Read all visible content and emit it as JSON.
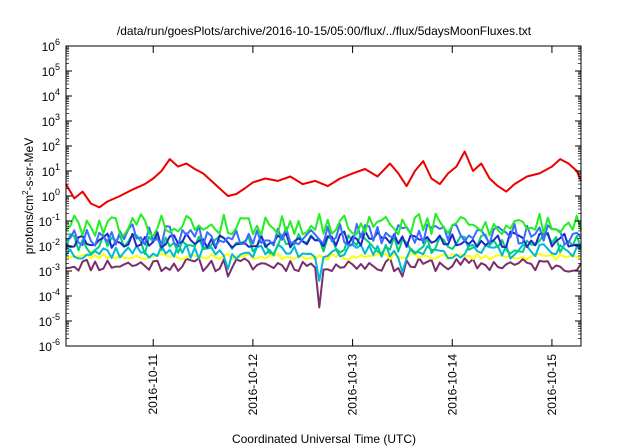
{
  "chart_data": {
    "type": "line",
    "title": "/data/run/goesPlots/archive/2016-10-15/05:00/flux/../flux/5daysMoonFluxes.txt",
    "xlabel": "Coordinated Universal Time (UTC)",
    "ylabel": {
      "pre": "protons/cm",
      "sup": "2",
      "post": "-s-sr-MeV"
    },
    "yscale": "log",
    "ylim_exp": [
      -6,
      6
    ],
    "y_ticks": [
      {
        "base": "10",
        "exp": "-6",
        "value": -6
      },
      {
        "base": "10",
        "exp": "-5",
        "value": -5
      },
      {
        "base": "10",
        "exp": "-4",
        "value": -4
      },
      {
        "base": "10",
        "exp": "-3",
        "value": -3
      },
      {
        "base": "10",
        "exp": "-2",
        "value": -2
      },
      {
        "base": "10",
        "exp": "-1",
        "value": -1
      },
      {
        "base": "10",
        "exp": "0",
        "value": 0
      },
      {
        "base": "10",
        "exp": "1",
        "value": 1
      },
      {
        "base": "10",
        "exp": "2",
        "value": 2
      },
      {
        "base": "10",
        "exp": "3",
        "value": 3
      },
      {
        "base": "10",
        "exp": "4",
        "value": 4
      },
      {
        "base": "10",
        "exp": "5",
        "value": 5
      },
      {
        "base": "10",
        "exp": "6",
        "value": 6
      }
    ],
    "xlim": [
      "2016-10-10T03:00",
      "2016-10-15T07:00"
    ],
    "x_ticks": [
      "2016-10-11",
      "2016-10-12",
      "2016-10-13",
      "2016-10-14",
      "2016-10-15"
    ],
    "grid": false,
    "legend": "none",
    "series": [
      {
        "color": "#7a2f6a",
        "base": 0.0018,
        "noise": 0.28,
        "seed": 11,
        "dips": [
          {
            "t": "2016-10-11T18:00",
            "v": 0.0006
          },
          {
            "t": "2016-10-12T16:00",
            "v": 3.5e-05
          },
          {
            "t": "2016-10-13T12:00",
            "v": 0.0006
          }
        ]
      },
      {
        "color": "#ffff00",
        "base": 0.0038,
        "noise": 0.12,
        "seed": 23,
        "dips": []
      },
      {
        "color": "#00b8d8",
        "base": 0.006,
        "noise": 0.3,
        "seed": 37,
        "dips": [
          {
            "t": "2016-10-11T18:00",
            "v": 0.0012
          },
          {
            "t": "2016-10-12T16:00",
            "v": 0.0004
          },
          {
            "t": "2016-10-13T12:00",
            "v": 0.0009
          }
        ]
      },
      {
        "color": "#00d070",
        "base": 0.012,
        "noise": 0.4,
        "seed": 41,
        "dips": []
      },
      {
        "color": "#1e28c8",
        "base": 0.018,
        "noise": 0.35,
        "seed": 53,
        "dips": []
      },
      {
        "color": "#3a6cff",
        "base": 0.028,
        "noise": 0.45,
        "seed": 67,
        "dips": []
      },
      {
        "color": "#22ee22",
        "base": 0.07,
        "noise": 0.45,
        "seed": 79,
        "dips": []
      },
      {
        "color": "#ee0000",
        "points": [
          [
            "2016-10-10T03:00",
            3
          ],
          [
            "2016-10-10T05:00",
            0.8
          ],
          [
            "2016-10-10T07:00",
            1.5
          ],
          [
            "2016-10-10T09:00",
            0.5
          ],
          [
            "2016-10-10T11:00",
            0.35
          ],
          [
            "2016-10-10T13:00",
            0.6
          ],
          [
            "2016-10-10T16:00",
            1.0
          ],
          [
            "2016-10-10T19:00",
            1.8
          ],
          [
            "2016-10-10T22:00",
            3.0
          ],
          [
            "2016-10-11T00:00",
            5.0
          ],
          [
            "2016-10-11T02:00",
            10
          ],
          [
            "2016-10-11T04:00",
            30
          ],
          [
            "2016-10-11T06:00",
            15
          ],
          [
            "2016-10-11T08:00",
            20
          ],
          [
            "2016-10-11T10:00",
            12
          ],
          [
            "2016-10-11T12:00",
            8
          ],
          [
            "2016-10-11T14:00",
            4
          ],
          [
            "2016-10-11T16:00",
            2
          ],
          [
            "2016-10-11T18:00",
            1.0
          ],
          [
            "2016-10-11T20:00",
            1.2
          ],
          [
            "2016-10-11T22:00",
            2.0
          ],
          [
            "2016-10-12T00:00",
            3.5
          ],
          [
            "2016-10-12T03:00",
            5
          ],
          [
            "2016-10-12T06:00",
            4
          ],
          [
            "2016-10-12T09:00",
            6
          ],
          [
            "2016-10-12T12:00",
            3
          ],
          [
            "2016-10-12T15:00",
            4
          ],
          [
            "2016-10-12T18:00",
            2.5
          ],
          [
            "2016-10-12T21:00",
            5
          ],
          [
            "2016-10-13T00:00",
            8
          ],
          [
            "2016-10-13T03:00",
            12
          ],
          [
            "2016-10-13T06:00",
            6
          ],
          [
            "2016-10-13T09:00",
            20
          ],
          [
            "2016-10-13T11:00",
            8
          ],
          [
            "2016-10-13T13:00",
            2.5
          ],
          [
            "2016-10-13T15:00",
            10
          ],
          [
            "2016-10-13T17:00",
            25
          ],
          [
            "2016-10-13T19:00",
            5
          ],
          [
            "2016-10-13T21:00",
            3
          ],
          [
            "2016-10-13T23:00",
            8
          ],
          [
            "2016-10-14T01:00",
            15
          ],
          [
            "2016-10-14T03:00",
            60
          ],
          [
            "2016-10-14T05:00",
            10
          ],
          [
            "2016-10-14T07:00",
            20
          ],
          [
            "2016-10-14T09:00",
            5
          ],
          [
            "2016-10-14T11:00",
            2.5
          ],
          [
            "2016-10-14T13:00",
            1.5
          ],
          [
            "2016-10-14T15:00",
            3
          ],
          [
            "2016-10-14T18:00",
            6
          ],
          [
            "2016-10-14T21:00",
            8
          ],
          [
            "2016-10-15T00:00",
            15
          ],
          [
            "2016-10-15T02:00",
            30
          ],
          [
            "2016-10-15T04:00",
            20
          ],
          [
            "2016-10-15T06:00",
            10
          ],
          [
            "2016-10-15T07:00",
            4
          ]
        ]
      }
    ]
  }
}
